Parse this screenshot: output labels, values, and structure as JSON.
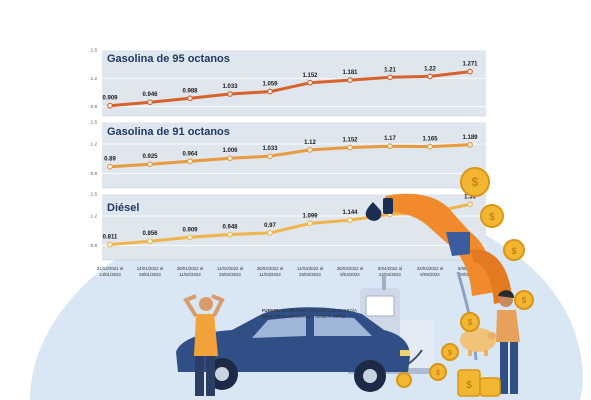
{
  "chart_data": [
    {
      "type": "line",
      "title": "Gasolina de 95 octanos",
      "x": [
        "31/12/2021 al 14/01/2022",
        "14/01/2022 al 28/01/2022",
        "28/01/2022 al 11/02/2022",
        "11/02/2022 al 25/02/2022",
        "25/02/2022 al 11/03/2022",
        "11/03/2022 al 25/03/2022",
        "25/03/2022 al 8/04/2022",
        "8/04/2022 al 22/04/2022",
        "22/04/2022 al 6/05/2022",
        "6/05/2022 al 20/05/2022"
      ],
      "values": [
        0.909,
        0.946,
        0.988,
        1.033,
        1.059,
        1.152,
        1.181,
        1.21,
        1.22,
        1.271
      ],
      "value_labels": [
        "0.909",
        "0.946",
        "0.988",
        "1.033",
        "1.059",
        "1.152",
        "1.181",
        "1.21",
        "1.22",
        "1.271"
      ],
      "yticks": [
        {
          "value": 0.9,
          "label": "0.9"
        },
        {
          "value": 1.2,
          "label": "1.2"
        },
        {
          "value": 1.5,
          "label": "1.5"
        }
      ],
      "ylim": [
        0.8,
        1.5
      ],
      "line_color": "#d9622b",
      "band_color": "#dfe6ee"
    },
    {
      "type": "line",
      "title": "Gasolina de 91 octanos",
      "x": [
        "31/12/2021 al 14/01/2022",
        "14/01/2022 al 28/01/2022",
        "28/01/2022 al 11/02/2022",
        "11/02/2022 al 25/02/2022",
        "25/02/2022 al 11/03/2022",
        "11/03/2022 al 25/03/2022",
        "25/03/2022 al 8/04/2022",
        "8/04/2022 al 22/04/2022",
        "22/04/2022 al 6/05/2022",
        "6/05/2022 al 20/05/2022"
      ],
      "values": [
        0.89,
        0.925,
        0.964,
        1.006,
        1.033,
        1.12,
        1.152,
        1.17,
        1.165,
        1.189
      ],
      "value_labels": [
        "0.89",
        "0.925",
        "0.964",
        "1.006",
        "1.033",
        "1.12",
        "1.152",
        "1.17",
        "1.165",
        "1.189"
      ],
      "yticks": [
        {
          "value": 0.8,
          "label": "0.8"
        },
        {
          "value": 1.2,
          "label": "1.2"
        },
        {
          "value": 1.5,
          "label": "1.5"
        }
      ],
      "ylim": [
        0.6,
        1.5
      ],
      "line_color": "#e89a3c",
      "band_color": "#dfe6ee"
    },
    {
      "type": "line",
      "title": "Diésel",
      "x": [
        "31/12/2021 al 14/01/2022",
        "14/01/2022 al 28/01/2022",
        "28/01/2022 al 11/02/2022",
        "11/02/2022 al 25/02/2022",
        "25/02/2022 al 11/03/2022",
        "11/03/2022 al 25/03/2022",
        "25/03/2022 al 8/04/2022",
        "8/04/2022 al 22/04/2022",
        "22/04/2022 al 6/05/2022",
        "6/05/2022 al 20/05/2022"
      ],
      "values": [
        0.811,
        0.856,
        0.909,
        0.948,
        0.97,
        1.099,
        1.144,
        1.223,
        1.247,
        1.36
      ],
      "value_labels": [
        "0.811",
        "0.856",
        "0.909",
        "0.948",
        "0.97",
        "1.099",
        "1.144",
        "1.223",
        "1.247",
        "1.36"
      ],
      "yticks": [
        {
          "value": 0.8,
          "label": "0.8"
        },
        {
          "value": 1.2,
          "label": "1.2"
        },
        {
          "value": 1.5,
          "label": "1.5"
        }
      ],
      "ylim": [
        0.6,
        1.5
      ],
      "line_color": "#f0b44a",
      "band_color": "#dfe6ee"
    }
  ],
  "x_date_labels": [
    [
      "31/12/2021 al",
      "14/01/2022"
    ],
    [
      "14/01/2022 al",
      "28/01/2022"
    ],
    [
      "28/01/2022 al",
      "11/02/2022"
    ],
    [
      "11/02/2022 al",
      "25/02/2022"
    ],
    [
      "25/02/2022 al",
      "11/03/2022"
    ],
    [
      "11/03/2022 al",
      "25/03/2022"
    ],
    [
      "25/03/2022 al",
      "8/04/2022"
    ],
    [
      "8/04/2022 al",
      "22/04/2022"
    ],
    [
      "22/04/2022 al",
      "6/05/2022"
    ],
    [
      "6/05/2022 al",
      "20/05/2022"
    ]
  ],
  "source": {
    "fuente_label": "FUENTE:",
    "fuente_text": "SECRETARÍA NACIONAL DE ENERGÍA",
    "info_label": "INFO:",
    "info_text": "DPTO. INFOGRAFÍA GESE A. ORTIZ"
  },
  "coin_symbol": "$",
  "colors": {
    "background_blob": "#d9e6f3",
    "car": "#2f4f86",
    "pump": "#f08a2c",
    "coin": "#f2b632",
    "title": "#1f3a63"
  },
  "icons": [
    "fuel-nozzle-icon",
    "oil-drop-icon",
    "gas-station-icon",
    "car-icon",
    "coin-icon",
    "piggy-bank-icon",
    "man-icon",
    "woman-icon"
  ]
}
